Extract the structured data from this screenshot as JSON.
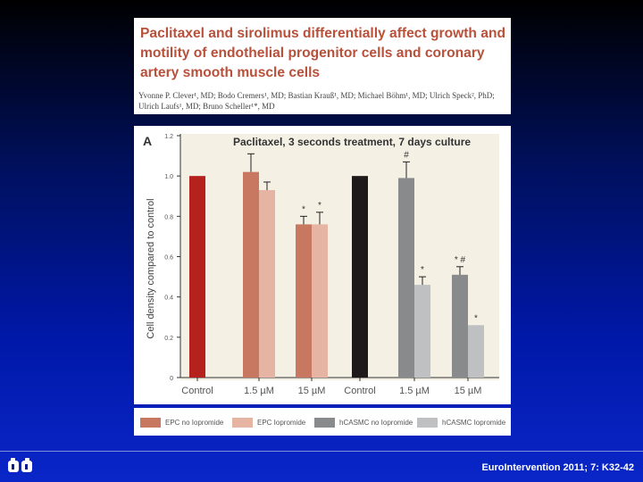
{
  "slide": {
    "title": "Paclitaxel and sirolimus differentially affect growth and motility of endothelial progenitor cells and coronary artery smooth muscle cells",
    "authors": "Yvonne P. Clever¹, MD; Bodo Cremers¹, MD; Bastian Krauß¹, MD; Michael Böhm¹, MD; Ulrich Speck², PhD; Ulrich Laufs¹, MD; Bruno Scheller¹*, MD",
    "citation": "EuroIntervention 2011; 7: K32-42"
  },
  "chart_data": {
    "type": "bar",
    "panel_label": "A",
    "title": "Paclitaxel, 3 seconds treatment, 7 days culture",
    "ylabel": "Cell density compared to control",
    "xlabel": "",
    "ylim": [
      0,
      1.2
    ],
    "yticks": [
      "0",
      "0.2",
      "0.4",
      "0.6",
      "0.8",
      "1.0",
      "1.2"
    ],
    "categories": [
      "Control",
      "1.5 µM",
      "15 µM",
      "Control",
      "1.5 µM",
      "15 µM"
    ],
    "bars": [
      {
        "group": 0,
        "series": 0,
        "value": 1.0,
        "err": 0
      },
      {
        "group": 1,
        "series": 0,
        "value": 1.02,
        "err": 0.09
      },
      {
        "group": 1,
        "series": 1,
        "value": 0.93,
        "err": 0.04
      },
      {
        "group": 2,
        "series": 0,
        "value": 0.76,
        "err": 0.04,
        "annotation": "*"
      },
      {
        "group": 2,
        "series": 1,
        "value": 0.76,
        "err": 0.06,
        "annotation": "*"
      },
      {
        "group": 3,
        "series": 2,
        "value": 1.0,
        "err": 0
      },
      {
        "group": 4,
        "series": 2,
        "value": 0.99,
        "err": 0.08,
        "annotation": "#"
      },
      {
        "group": 4,
        "series": 3,
        "value": 0.46,
        "err": 0.04,
        "annotation": "*"
      },
      {
        "group": 5,
        "series": 2,
        "value": 0.51,
        "err": 0.04,
        "annotation": "* #"
      },
      {
        "group": 5,
        "series": 3,
        "value": 0.26,
        "err": 0,
        "annotation": "*"
      }
    ],
    "series": [
      {
        "name": "EPC no Iopromide",
        "color": "#c87860"
      },
      {
        "name": "EPC Iopromide",
        "color": "#e6b4a2"
      },
      {
        "name": "hCASMC no Iopromide",
        "color": "#888a8c"
      },
      {
        "name": "hCASMC Iopromide",
        "color": "#bfc0c2"
      }
    ],
    "control_colors": [
      "#b5221e",
      "#1f1a1a"
    ],
    "grid": false,
    "legend_position": "bottom"
  }
}
